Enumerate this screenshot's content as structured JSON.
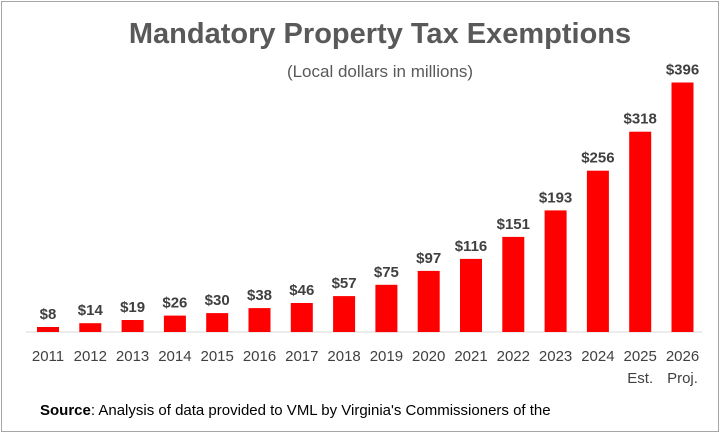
{
  "chart_data": {
    "type": "bar",
    "title": "Mandatory Property Tax Exemptions",
    "subtitle": "(Local dollars in millions)",
    "categories": [
      "2011",
      "2012",
      "2013",
      "2014",
      "2015",
      "2016",
      "2017",
      "2018",
      "2019",
      "2020",
      "2021",
      "2022",
      "2023",
      "2024",
      "2025",
      "2026"
    ],
    "category_sublabels": [
      "",
      "",
      "",
      "",
      "",
      "",
      "",
      "",
      "",
      "",
      "",
      "",
      "",
      "",
      "Est.",
      "Proj."
    ],
    "values": [
      8,
      14,
      19,
      26,
      30,
      38,
      46,
      57,
      75,
      97,
      116,
      151,
      193,
      256,
      318,
      396
    ],
    "data_labels": [
      "$8",
      "$14",
      "$19",
      "$26",
      "$30",
      "$38",
      "$46",
      "$57",
      "$75",
      "$97",
      "$116",
      "$151",
      "$193",
      "$256",
      "$318",
      "$396"
    ],
    "ylim": [
      0,
      400
    ],
    "grid": false,
    "legend": "none",
    "bar_color": "#ff0000",
    "xlabel": "",
    "ylabel": ""
  },
  "source": {
    "label": "Source",
    "text": ": Analysis of data provided to VML by Virginia's Commissioners of the"
  }
}
